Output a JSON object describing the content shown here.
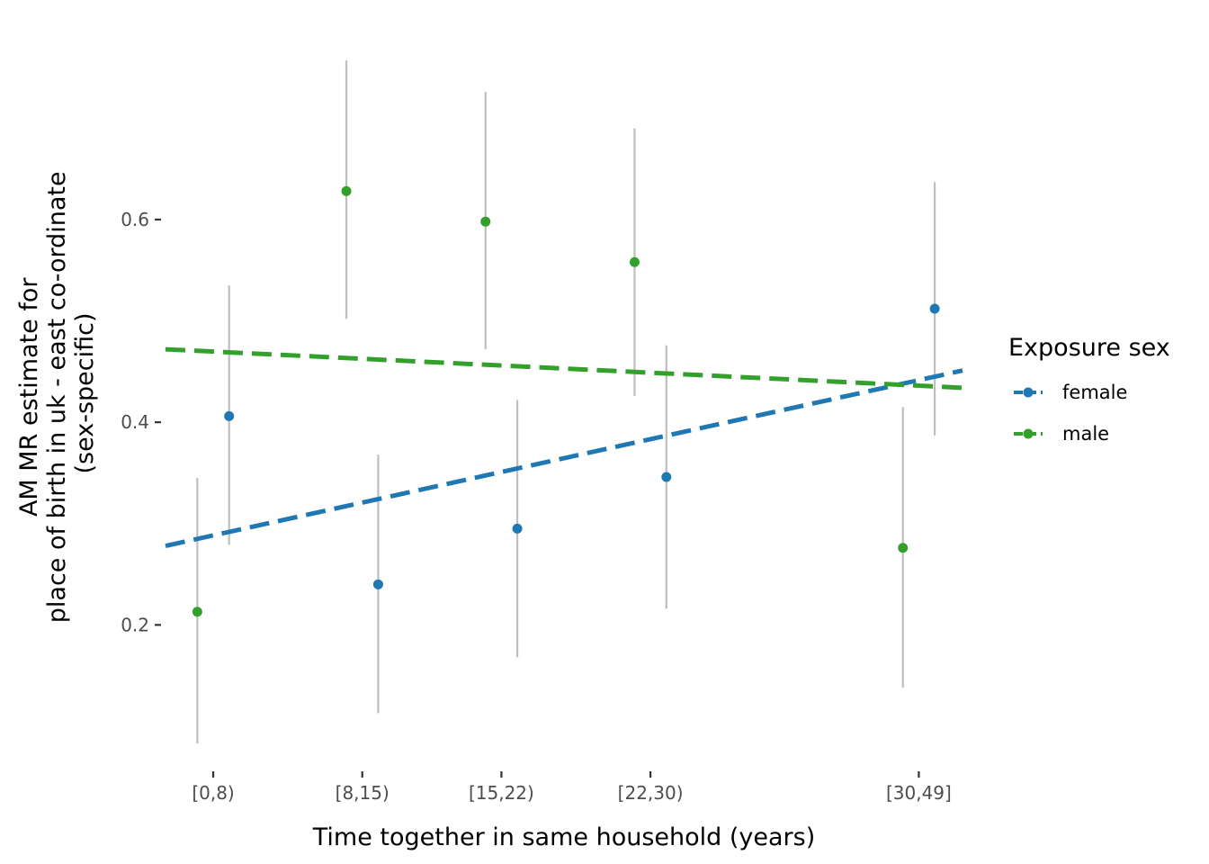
{
  "chart_data": {
    "type": "scatter",
    "title": "",
    "xlabel": "Time together in same household (years)",
    "ylabel_lines": [
      "AM MR estimate for",
      "place of birth in uk - east co-ordinate",
      "(sex-specific)"
    ],
    "x_categories": [
      {
        "label": "[0,8)",
        "mid": 4
      },
      {
        "label": "[8,15)",
        "mid": 11.5
      },
      {
        "label": "[15,22)",
        "mid": 18.5
      },
      {
        "label": "[22,30)",
        "mid": 26
      },
      {
        "label": "[30,49]",
        "mid": 39.5
      }
    ],
    "xlim": [
      1.6,
      41.7
    ],
    "ylim": [
      0.06,
      0.79
    ],
    "y_ticks": [
      {
        "value": 0.2,
        "label": "0.2"
      },
      {
        "value": 0.4,
        "label": "0.4"
      },
      {
        "value": 0.6,
        "label": "0.6"
      }
    ],
    "grid": false,
    "legend": {
      "title": "Exposure sex",
      "position": "right"
    },
    "errorbar_color": "#bebebe",
    "series": [
      {
        "name": "female",
        "color": "#1f78b4",
        "points": [
          {
            "category": "[0,8)",
            "y": 0.406,
            "ci": [
              0.279,
              0.535
            ]
          },
          {
            "category": "[8,15)",
            "y": 0.24,
            "ci": [
              0.113,
              0.368
            ]
          },
          {
            "category": "[15,22)",
            "y": 0.295,
            "ci": [
              0.168,
              0.422
            ]
          },
          {
            "category": "[22,30)",
            "y": 0.346,
            "ci": [
              0.216,
              0.476
            ]
          },
          {
            "category": "[30,49]",
            "y": 0.512,
            "ci": [
              0.387,
              0.637
            ]
          }
        ],
        "trend": {
          "start": 0.278,
          "end": 0.451
        }
      },
      {
        "name": "male",
        "color": "#33a02c",
        "points": [
          {
            "category": "[0,8)",
            "y": 0.213,
            "ci": [
              0.083,
              0.345
            ]
          },
          {
            "category": "[8,15)",
            "y": 0.628,
            "ci": [
              0.502,
              0.757
            ]
          },
          {
            "category": "[15,22)",
            "y": 0.598,
            "ci": [
              0.472,
              0.726
            ]
          },
          {
            "category": "[22,30)",
            "y": 0.558,
            "ci": [
              0.426,
              0.69
            ]
          },
          {
            "category": "[30,49]",
            "y": 0.276,
            "ci": [
              0.138,
              0.415
            ]
          }
        ],
        "trend": {
          "start": 0.472,
          "end": 0.434
        }
      }
    ]
  }
}
